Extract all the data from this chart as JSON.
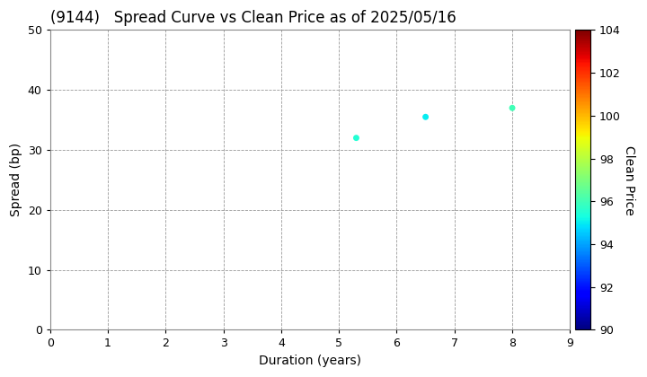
{
  "title": "(9144)   Spread Curve vs Clean Price as of 2025/05/16",
  "xlabel": "Duration (years)",
  "ylabel": "Spread (bp)",
  "colorbar_label": "Clean Price",
  "xlim": [
    0,
    9
  ],
  "ylim": [
    0,
    50
  ],
  "xticks": [
    0,
    1,
    2,
    3,
    4,
    5,
    6,
    7,
    8,
    9
  ],
  "yticks": [
    0,
    10,
    20,
    30,
    40,
    50
  ],
  "cbar_min": 90,
  "cbar_max": 104,
  "cbar_ticks": [
    90,
    92,
    94,
    96,
    98,
    100,
    102,
    104
  ],
  "points": [
    {
      "duration": 5.3,
      "spread": 32.0,
      "price": 95.5
    },
    {
      "duration": 6.5,
      "spread": 35.5,
      "price": 95.0
    },
    {
      "duration": 8.0,
      "spread": 37.0,
      "price": 96.0
    }
  ],
  "background_color": "#ffffff",
  "grid_color": "#999999",
  "title_fontsize": 12,
  "axis_fontsize": 10,
  "tick_fontsize": 9,
  "marker_size": 25
}
